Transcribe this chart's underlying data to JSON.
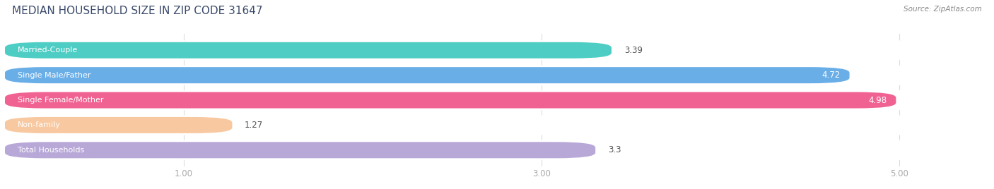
{
  "title": "MEDIAN HOUSEHOLD SIZE IN ZIP CODE 31647",
  "source": "Source: ZipAtlas.com",
  "categories": [
    "Married-Couple",
    "Single Male/Father",
    "Single Female/Mother",
    "Non-family",
    "Total Households"
  ],
  "values": [
    3.39,
    4.72,
    4.98,
    1.27,
    3.3
  ],
  "bar_colors": [
    "#4ECDC4",
    "#6aaee8",
    "#F06292",
    "#F8C8A0",
    "#B8A8D8"
  ],
  "bar_bg_colors": [
    "#f0f0f0",
    "#f0f0f0",
    "#f0f0f0",
    "#f0f0f0",
    "#f0f0f0"
  ],
  "label_colors": [
    "#555555",
    "#555555",
    "#555555",
    "#555555",
    "#555555"
  ],
  "value_inside": [
    false,
    true,
    true,
    false,
    false
  ],
  "xlim_max": 5.5,
  "xticks": [
    1.0,
    3.0,
    5.0
  ],
  "xtick_labels": [
    "1.00",
    "3.00",
    "5.00"
  ],
  "title_fontsize": 11,
  "label_fontsize": 8.0,
  "value_fontsize": 8.5,
  "bar_height": 0.65,
  "row_bg_color": "#ffffff",
  "fig_bg_color": "#ffffff",
  "title_color": "#3a4a6b",
  "source_color": "#888888",
  "grid_color": "#dddddd"
}
